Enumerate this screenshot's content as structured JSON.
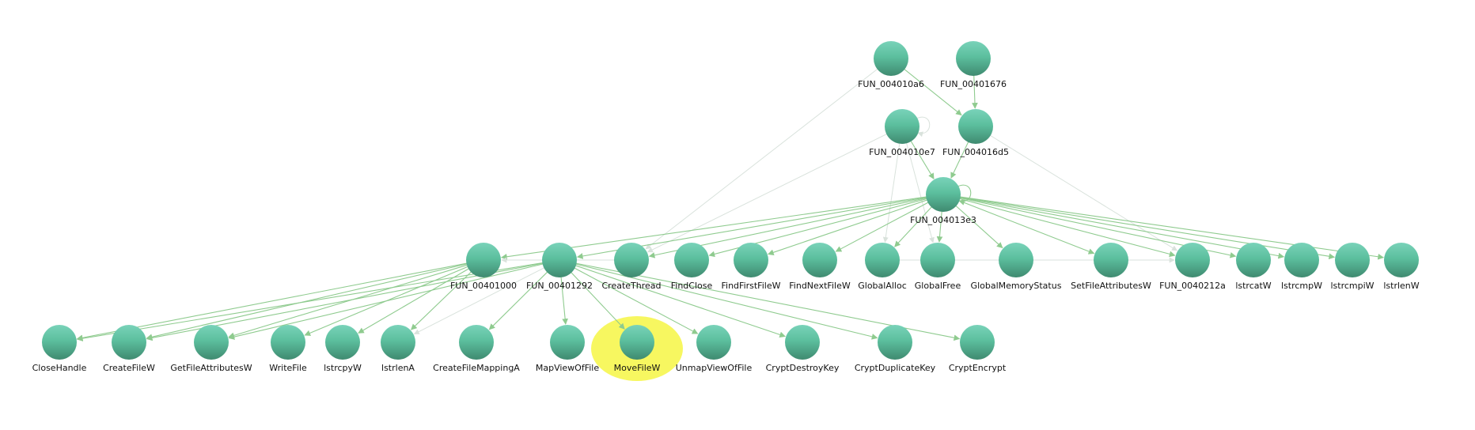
{
  "graph": {
    "node_colors": {
      "top": "#79d3b9",
      "mid": "#5cbf9e",
      "bottom": "#3f8a70"
    },
    "edge_color": "#8fcb8f",
    "faint_edge_color": "#d9e2dc",
    "highlight_color": "#f7f760",
    "highlighted_node": "n28",
    "nodes": [
      {
        "id": "n0",
        "label": "FUN_004010a6"
      },
      {
        "id": "n1",
        "label": "FUN_00401676"
      },
      {
        "id": "n2",
        "label": "FUN_004010e7"
      },
      {
        "id": "n3",
        "label": "FUN_004016d5"
      },
      {
        "id": "n4",
        "label": "FUN_004013e3"
      },
      {
        "id": "n5",
        "label": "FUN_00401000"
      },
      {
        "id": "n6",
        "label": "FUN_00401292"
      },
      {
        "id": "n7",
        "label": "CreateThread"
      },
      {
        "id": "n8",
        "label": "FindClose"
      },
      {
        "id": "n9",
        "label": "FindFirstFileW"
      },
      {
        "id": "n10",
        "label": "FindNextFileW"
      },
      {
        "id": "n11",
        "label": "GlobalAlloc"
      },
      {
        "id": "n12",
        "label": "GlobalFree"
      },
      {
        "id": "n13",
        "label": "GlobalMemoryStatus"
      },
      {
        "id": "n14",
        "label": "SetFileAttributesW"
      },
      {
        "id": "n15",
        "label": "FUN_0040212a"
      },
      {
        "id": "n16",
        "label": "lstrcatW"
      },
      {
        "id": "n17",
        "label": "lstrcmpW"
      },
      {
        "id": "n18",
        "label": "lstrcmpiW"
      },
      {
        "id": "n19",
        "label": "lstrlenW"
      },
      {
        "id": "n20",
        "label": "CloseHandle"
      },
      {
        "id": "n21",
        "label": "CreateFileW"
      },
      {
        "id": "n22",
        "label": "GetFileAttributesW"
      },
      {
        "id": "n23",
        "label": "WriteFile"
      },
      {
        "id": "n24",
        "label": "lstrcpyW"
      },
      {
        "id": "n25",
        "label": "lstrlenA"
      },
      {
        "id": "n26",
        "label": "CreateFileMappingA"
      },
      {
        "id": "n27",
        "label": "MapViewOfFile"
      },
      {
        "id": "n28",
        "label": "MoveFileW"
      },
      {
        "id": "n29",
        "label": "UnmapViewOfFile"
      },
      {
        "id": "n30",
        "label": "CryptDestroyKey"
      },
      {
        "id": "n31",
        "label": "CryptDuplicateKey"
      },
      {
        "id": "n32",
        "label": "CryptEncrypt"
      }
    ],
    "edges": [
      {
        "from": "n0",
        "to": "n3",
        "faint": false
      },
      {
        "from": "n1",
        "to": "n3",
        "faint": false
      },
      {
        "from": "n0",
        "to": "n7",
        "faint": true
      },
      {
        "from": "n2",
        "to": "n2",
        "faint": true,
        "loop": true
      },
      {
        "from": "n2",
        "to": "n4",
        "faint": false
      },
      {
        "from": "n3",
        "to": "n4",
        "faint": false
      },
      {
        "from": "n2",
        "to": "n7",
        "faint": true
      },
      {
        "from": "n2",
        "to": "n11",
        "faint": true
      },
      {
        "from": "n2",
        "to": "n12",
        "faint": true
      },
      {
        "from": "n3",
        "to": "n15",
        "faint": true
      },
      {
        "from": "n4",
        "to": "n4",
        "faint": false,
        "loop": true
      },
      {
        "from": "n4",
        "to": "n5",
        "faint": false
      },
      {
        "from": "n4",
        "to": "n6",
        "faint": false
      },
      {
        "from": "n4",
        "to": "n7",
        "faint": false
      },
      {
        "from": "n4",
        "to": "n8",
        "faint": false
      },
      {
        "from": "n4",
        "to": "n9",
        "faint": false
      },
      {
        "from": "n4",
        "to": "n10",
        "faint": false
      },
      {
        "from": "n4",
        "to": "n11",
        "faint": false
      },
      {
        "from": "n4",
        "to": "n12",
        "faint": false
      },
      {
        "from": "n4",
        "to": "n13",
        "faint": false
      },
      {
        "from": "n4",
        "to": "n14",
        "faint": false
      },
      {
        "from": "n4",
        "to": "n15",
        "faint": false
      },
      {
        "from": "n4",
        "to": "n16",
        "faint": false
      },
      {
        "from": "n4",
        "to": "n17",
        "faint": false
      },
      {
        "from": "n4",
        "to": "n18",
        "faint": false
      },
      {
        "from": "n4",
        "to": "n19",
        "faint": false
      },
      {
        "from": "n5",
        "to": "n20",
        "faint": false
      },
      {
        "from": "n5",
        "to": "n21",
        "faint": false
      },
      {
        "from": "n5",
        "to": "n22",
        "faint": false
      },
      {
        "from": "n5",
        "to": "n23",
        "faint": false
      },
      {
        "from": "n5",
        "to": "n24",
        "faint": false
      },
      {
        "from": "n5",
        "to": "n25",
        "faint": false
      },
      {
        "from": "n6",
        "to": "n20",
        "faint": false
      },
      {
        "from": "n6",
        "to": "n21",
        "faint": false
      },
      {
        "from": "n6",
        "to": "n22",
        "faint": false
      },
      {
        "from": "n6",
        "to": "n26",
        "faint": false
      },
      {
        "from": "n6",
        "to": "n27",
        "faint": false
      },
      {
        "from": "n6",
        "to": "n28",
        "faint": false
      },
      {
        "from": "n6",
        "to": "n29",
        "faint": false
      },
      {
        "from": "n6",
        "to": "n30",
        "faint": false
      },
      {
        "from": "n6",
        "to": "n31",
        "faint": false
      },
      {
        "from": "n6",
        "to": "n32",
        "faint": false
      },
      {
        "from": "n6",
        "to": "n25",
        "faint": true
      },
      {
        "from": "n11",
        "to": "n15",
        "faint": true
      },
      {
        "from": "n7",
        "to": "n5",
        "faint": true
      }
    ]
  }
}
